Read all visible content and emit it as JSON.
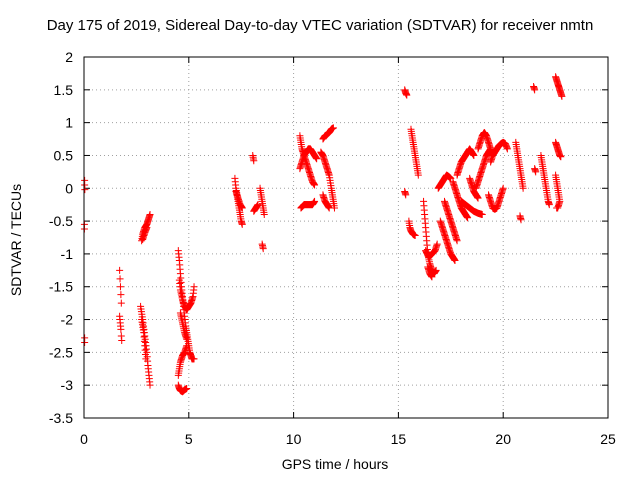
{
  "chart_data": {
    "type": "scatter",
    "title": "Day 175 of 2019, Sidereal Day-to-day VTEC variation (SDTVAR) for receiver nmtn",
    "xlabel": "GPS time / hours",
    "ylabel": "SDTVAR / TECUs",
    "xlim": [
      0,
      25
    ],
    "ylim": [
      -3.5,
      2
    ],
    "xticks": [
      0,
      5,
      10,
      15,
      20,
      25
    ],
    "yticks": [
      -3.5,
      -3,
      -2.5,
      -2,
      -1.5,
      -1,
      -0.5,
      0,
      0.5,
      1,
      1.5,
      2
    ],
    "grid": true,
    "marker": "+",
    "color": "#ff0000",
    "segments": [
      [
        [
          0.03,
          0.12
        ],
        [
          0.03,
          0.05
        ],
        [
          0.04,
          -0.02
        ]
      ],
      [
        [
          0.02,
          -0.55
        ],
        [
          0.02,
          -0.62
        ]
      ],
      [
        [
          0.03,
          -2.28
        ],
        [
          0.03,
          -2.35
        ]
      ],
      [
        [
          1.7,
          -1.25
        ],
        [
          1.72,
          -1.38
        ],
        [
          1.74,
          -1.5
        ],
        [
          1.76,
          -1.62
        ],
        [
          1.78,
          -1.75
        ]
      ],
      [
        [
          1.7,
          -1.95
        ],
        [
          1.73,
          -2.05
        ],
        [
          1.76,
          -2.15
        ],
        [
          1.78,
          -2.25
        ],
        [
          1.8,
          -2.32
        ]
      ],
      [
        [
          2.7,
          -1.8
        ],
        [
          2.8,
          -2.0
        ],
        [
          2.9,
          -2.25
        ],
        [
          3.0,
          -2.5
        ],
        [
          3.05,
          -2.7
        ],
        [
          3.1,
          -2.85
        ],
        [
          3.15,
          -3.0
        ]
      ],
      [
        [
          2.75,
          -2.0
        ],
        [
          2.85,
          -2.2
        ],
        [
          2.9,
          -2.4
        ],
        [
          2.95,
          -2.6
        ]
      ],
      [
        [
          2.75,
          -0.8
        ],
        [
          2.8,
          -0.7
        ],
        [
          2.9,
          -0.6
        ],
        [
          3.0,
          -0.55
        ],
        [
          3.05,
          -0.5
        ],
        [
          3.1,
          -0.45
        ],
        [
          3.15,
          -0.4
        ]
      ],
      [
        [
          2.8,
          -0.78
        ],
        [
          2.9,
          -0.68
        ],
        [
          3.0,
          -0.6
        ]
      ],
      [
        [
          4.5,
          -0.95
        ],
        [
          4.55,
          -1.1
        ],
        [
          4.6,
          -1.3
        ],
        [
          4.65,
          -1.5
        ],
        [
          4.7,
          -1.65
        ],
        [
          4.75,
          -1.8
        ],
        [
          4.8,
          -1.95
        ],
        [
          4.85,
          -2.1
        ],
        [
          4.9,
          -2.2
        ],
        [
          4.95,
          -2.3
        ],
        [
          5.0,
          -2.4
        ],
        [
          5.05,
          -2.5
        ],
        [
          5.1,
          -2.55
        ],
        [
          5.15,
          -2.6
        ],
        [
          5.25,
          -2.6
        ]
      ],
      [
        [
          4.55,
          -1.4
        ],
        [
          4.6,
          -1.55
        ],
        [
          4.7,
          -1.7
        ],
        [
          4.8,
          -1.8
        ],
        [
          4.9,
          -1.85
        ],
        [
          5.0,
          -1.8
        ],
        [
          5.1,
          -1.75
        ],
        [
          5.2,
          -1.65
        ],
        [
          5.25,
          -1.5
        ]
      ],
      [
        [
          4.5,
          -2.85
        ],
        [
          4.55,
          -2.75
        ],
        [
          4.6,
          -2.65
        ],
        [
          4.7,
          -2.55
        ],
        [
          4.8,
          -2.5
        ],
        [
          4.9,
          -2.4
        ]
      ],
      [
        [
          4.5,
          -3.0
        ],
        [
          4.55,
          -3.05
        ],
        [
          4.6,
          -3.08
        ],
        [
          4.7,
          -3.1
        ],
        [
          4.8,
          -3.07
        ],
        [
          4.9,
          -3.05
        ]
      ],
      [
        [
          4.6,
          -1.9
        ],
        [
          4.7,
          -2.05
        ],
        [
          4.8,
          -2.2
        ],
        [
          4.9,
          -2.3
        ]
      ],
      [
        [
          7.2,
          0.15
        ],
        [
          7.25,
          0.0
        ],
        [
          7.3,
          -0.1
        ],
        [
          7.35,
          -0.2
        ],
        [
          7.4,
          -0.3
        ],
        [
          7.45,
          -0.4
        ],
        [
          7.5,
          -0.5
        ],
        [
          7.55,
          -0.55
        ]
      ],
      [
        [
          7.25,
          -0.05
        ],
        [
          7.35,
          -0.15
        ],
        [
          7.45,
          -0.25
        ],
        [
          7.55,
          -0.3
        ]
      ],
      [
        [
          8.05,
          0.5
        ],
        [
          8.1,
          0.42
        ]
      ],
      [
        [
          8.1,
          -0.35
        ],
        [
          8.2,
          -0.3
        ],
        [
          8.3,
          -0.25
        ]
      ],
      [
        [
          8.4,
          0.0
        ],
        [
          8.45,
          -0.1
        ],
        [
          8.5,
          -0.2
        ],
        [
          8.55,
          -0.3
        ],
        [
          8.6,
          -0.4
        ]
      ],
      [
        [
          8.5,
          -0.85
        ],
        [
          8.55,
          -0.92
        ]
      ],
      [
        [
          10.3,
          0.8
        ],
        [
          10.35,
          0.7
        ],
        [
          10.4,
          0.6
        ],
        [
          10.5,
          0.5
        ],
        [
          10.6,
          0.4
        ],
        [
          10.7,
          0.3
        ],
        [
          10.8,
          0.2
        ],
        [
          10.9,
          0.1
        ],
        [
          11.0,
          0.05
        ]
      ],
      [
        [
          10.3,
          0.3
        ],
        [
          10.4,
          0.4
        ],
        [
          10.5,
          0.5
        ],
        [
          10.6,
          0.55
        ],
        [
          10.7,
          0.6
        ],
        [
          10.8,
          0.6
        ],
        [
          10.9,
          0.55
        ],
        [
          11.0,
          0.5
        ],
        [
          11.1,
          0.45
        ]
      ],
      [
        [
          10.35,
          -0.3
        ],
        [
          10.5,
          -0.25
        ],
        [
          10.7,
          -0.25
        ],
        [
          10.9,
          -0.25
        ],
        [
          11.0,
          -0.2
        ]
      ],
      [
        [
          11.4,
          0.75
        ],
        [
          11.5,
          0.8
        ],
        [
          11.6,
          0.82
        ],
        [
          11.7,
          0.85
        ],
        [
          11.8,
          0.9
        ],
        [
          11.9,
          0.92
        ]
      ],
      [
        [
          11.3,
          0.55
        ],
        [
          11.4,
          0.5
        ],
        [
          11.5,
          0.4
        ],
        [
          11.6,
          0.3
        ],
        [
          11.7,
          0.2
        ],
        [
          11.8,
          0.0
        ],
        [
          11.85,
          -0.1
        ],
        [
          11.9,
          -0.2
        ],
        [
          11.95,
          -0.3
        ]
      ],
      [
        [
          11.4,
          -0.1
        ],
        [
          11.5,
          -0.2
        ],
        [
          11.6,
          -0.25
        ],
        [
          11.7,
          -0.3
        ]
      ],
      [
        [
          15.3,
          1.5
        ],
        [
          15.35,
          1.45
        ],
        [
          15.4,
          1.42
        ]
      ],
      [
        [
          15.3,
          -0.05
        ],
        [
          15.35,
          -0.1
        ]
      ],
      [
        [
          15.5,
          -0.5
        ],
        [
          15.55,
          -0.6
        ],
        [
          15.6,
          -0.65
        ],
        [
          15.7,
          -0.7
        ],
        [
          15.8,
          -0.72
        ]
      ],
      [
        [
          15.6,
          0.9
        ],
        [
          15.65,
          0.8
        ],
        [
          15.7,
          0.7
        ],
        [
          15.75,
          0.6
        ],
        [
          15.8,
          0.5
        ],
        [
          15.85,
          0.4
        ],
        [
          15.9,
          0.3
        ],
        [
          15.95,
          0.2
        ]
      ],
      [
        [
          16.2,
          -0.2
        ],
        [
          16.25,
          -0.4
        ],
        [
          16.3,
          -0.6
        ],
        [
          16.35,
          -0.8
        ],
        [
          16.4,
          -1.0
        ],
        [
          16.5,
          -1.15
        ],
        [
          16.6,
          -1.25
        ],
        [
          16.7,
          -1.3
        ],
        [
          16.8,
          -1.25
        ]
      ],
      [
        [
          16.3,
          -0.95
        ],
        [
          16.45,
          -1.05
        ],
        [
          16.6,
          -1.0
        ],
        [
          16.75,
          -0.95
        ],
        [
          16.85,
          -0.85
        ]
      ],
      [
        [
          16.4,
          -1.2
        ],
        [
          16.5,
          -1.3
        ],
        [
          16.6,
          -1.35
        ]
      ],
      [
        [
          16.9,
          0.0
        ],
        [
          17.0,
          0.05
        ],
        [
          17.1,
          0.1
        ],
        [
          17.2,
          0.15
        ],
        [
          17.3,
          0.2
        ],
        [
          17.4,
          0.18
        ],
        [
          17.5,
          0.15
        ]
      ],
      [
        [
          17.0,
          -0.5
        ],
        [
          17.1,
          -0.6
        ],
        [
          17.2,
          -0.7
        ],
        [
          17.3,
          -0.8
        ],
        [
          17.4,
          -0.9
        ],
        [
          17.5,
          -1.0
        ],
        [
          17.6,
          -1.05
        ],
        [
          17.7,
          -1.1
        ]
      ],
      [
        [
          17.2,
          -0.2
        ],
        [
          17.3,
          -0.3
        ],
        [
          17.4,
          -0.4
        ],
        [
          17.5,
          -0.5
        ],
        [
          17.6,
          -0.6
        ],
        [
          17.7,
          -0.7
        ],
        [
          17.8,
          -0.8
        ]
      ],
      [
        [
          17.6,
          0.1
        ],
        [
          17.7,
          0.0
        ],
        [
          17.8,
          -0.1
        ],
        [
          17.9,
          -0.2
        ],
        [
          18.0,
          -0.3
        ],
        [
          18.1,
          -0.35
        ],
        [
          18.2,
          -0.4
        ],
        [
          18.3,
          -0.45
        ]
      ],
      [
        [
          17.8,
          0.2
        ],
        [
          17.9,
          0.3
        ],
        [
          18.0,
          0.4
        ],
        [
          18.1,
          0.45
        ],
        [
          18.2,
          0.5
        ],
        [
          18.3,
          0.55
        ],
        [
          18.4,
          0.6
        ],
        [
          18.5,
          0.55
        ],
        [
          18.6,
          0.5
        ]
      ],
      [
        [
          18.0,
          -0.2
        ],
        [
          18.2,
          -0.25
        ],
        [
          18.4,
          -0.3
        ],
        [
          18.6,
          -0.35
        ],
        [
          18.8,
          -0.38
        ],
        [
          19.0,
          -0.4
        ]
      ],
      [
        [
          18.4,
          0.15
        ],
        [
          18.5,
          0.05
        ],
        [
          18.6,
          -0.05
        ],
        [
          18.7,
          -0.1
        ],
        [
          18.8,
          -0.15
        ]
      ],
      [
        [
          18.7,
          0.0
        ],
        [
          18.8,
          0.1
        ],
        [
          18.9,
          0.2
        ],
        [
          19.0,
          0.3
        ],
        [
          19.1,
          0.4
        ],
        [
          19.2,
          0.5
        ],
        [
          19.3,
          0.55
        ],
        [
          19.4,
          0.6
        ]
      ],
      [
        [
          18.8,
          0.6
        ],
        [
          18.9,
          0.7
        ],
        [
          19.0,
          0.8
        ],
        [
          19.1,
          0.85
        ],
        [
          19.2,
          0.8
        ],
        [
          19.3,
          0.7
        ],
        [
          19.4,
          0.6
        ]
      ],
      [
        [
          19.3,
          -0.1
        ],
        [
          19.4,
          -0.2
        ],
        [
          19.5,
          -0.3
        ],
        [
          19.6,
          -0.32
        ],
        [
          19.7,
          -0.3
        ],
        [
          19.8,
          -0.2
        ],
        [
          19.9,
          -0.1
        ],
        [
          20.0,
          0.0
        ]
      ],
      [
        [
          19.4,
          0.4
        ],
        [
          19.5,
          0.5
        ],
        [
          19.6,
          0.55
        ],
        [
          19.7,
          0.6
        ],
        [
          19.8,
          0.65
        ],
        [
          19.9,
          0.68
        ],
        [
          20.0,
          0.7
        ],
        [
          20.1,
          0.68
        ],
        [
          20.2,
          0.6
        ]
      ],
      [
        [
          20.6,
          0.7
        ],
        [
          20.65,
          0.6
        ],
        [
          20.7,
          0.5
        ],
        [
          20.75,
          0.4
        ],
        [
          20.8,
          0.3
        ],
        [
          20.85,
          0.2
        ],
        [
          20.9,
          0.1
        ],
        [
          20.95,
          0.0
        ]
      ],
      [
        [
          20.8,
          -0.42
        ],
        [
          20.85,
          -0.48
        ]
      ],
      [
        [
          21.45,
          1.55
        ],
        [
          21.5,
          1.5
        ]
      ],
      [
        [
          21.5,
          0.3
        ],
        [
          21.55,
          0.25
        ]
      ],
      [
        [
          21.8,
          0.5
        ],
        [
          21.85,
          0.4
        ],
        [
          21.9,
          0.3
        ],
        [
          21.95,
          0.2
        ],
        [
          22.0,
          0.1
        ],
        [
          22.05,
          0.0
        ],
        [
          22.1,
          -0.1
        ],
        [
          22.15,
          -0.2
        ],
        [
          22.2,
          -0.25
        ]
      ],
      [
        [
          22.5,
          1.7
        ],
        [
          22.55,
          1.65
        ],
        [
          22.6,
          1.6
        ],
        [
          22.65,
          1.55
        ],
        [
          22.7,
          1.5
        ],
        [
          22.75,
          1.45
        ],
        [
          22.8,
          1.4
        ]
      ],
      [
        [
          22.5,
          0.7
        ],
        [
          22.55,
          0.65
        ],
        [
          22.6,
          0.6
        ],
        [
          22.65,
          0.55
        ],
        [
          22.7,
          0.5
        ],
        [
          22.75,
          0.48
        ]
      ],
      [
        [
          22.5,
          0.2
        ],
        [
          22.55,
          0.1
        ],
        [
          22.6,
          0.0
        ],
        [
          22.65,
          -0.1
        ],
        [
          22.7,
          -0.2
        ],
        [
          22.6,
          -0.3
        ],
        [
          22.55,
          -0.3
        ]
      ]
    ]
  }
}
